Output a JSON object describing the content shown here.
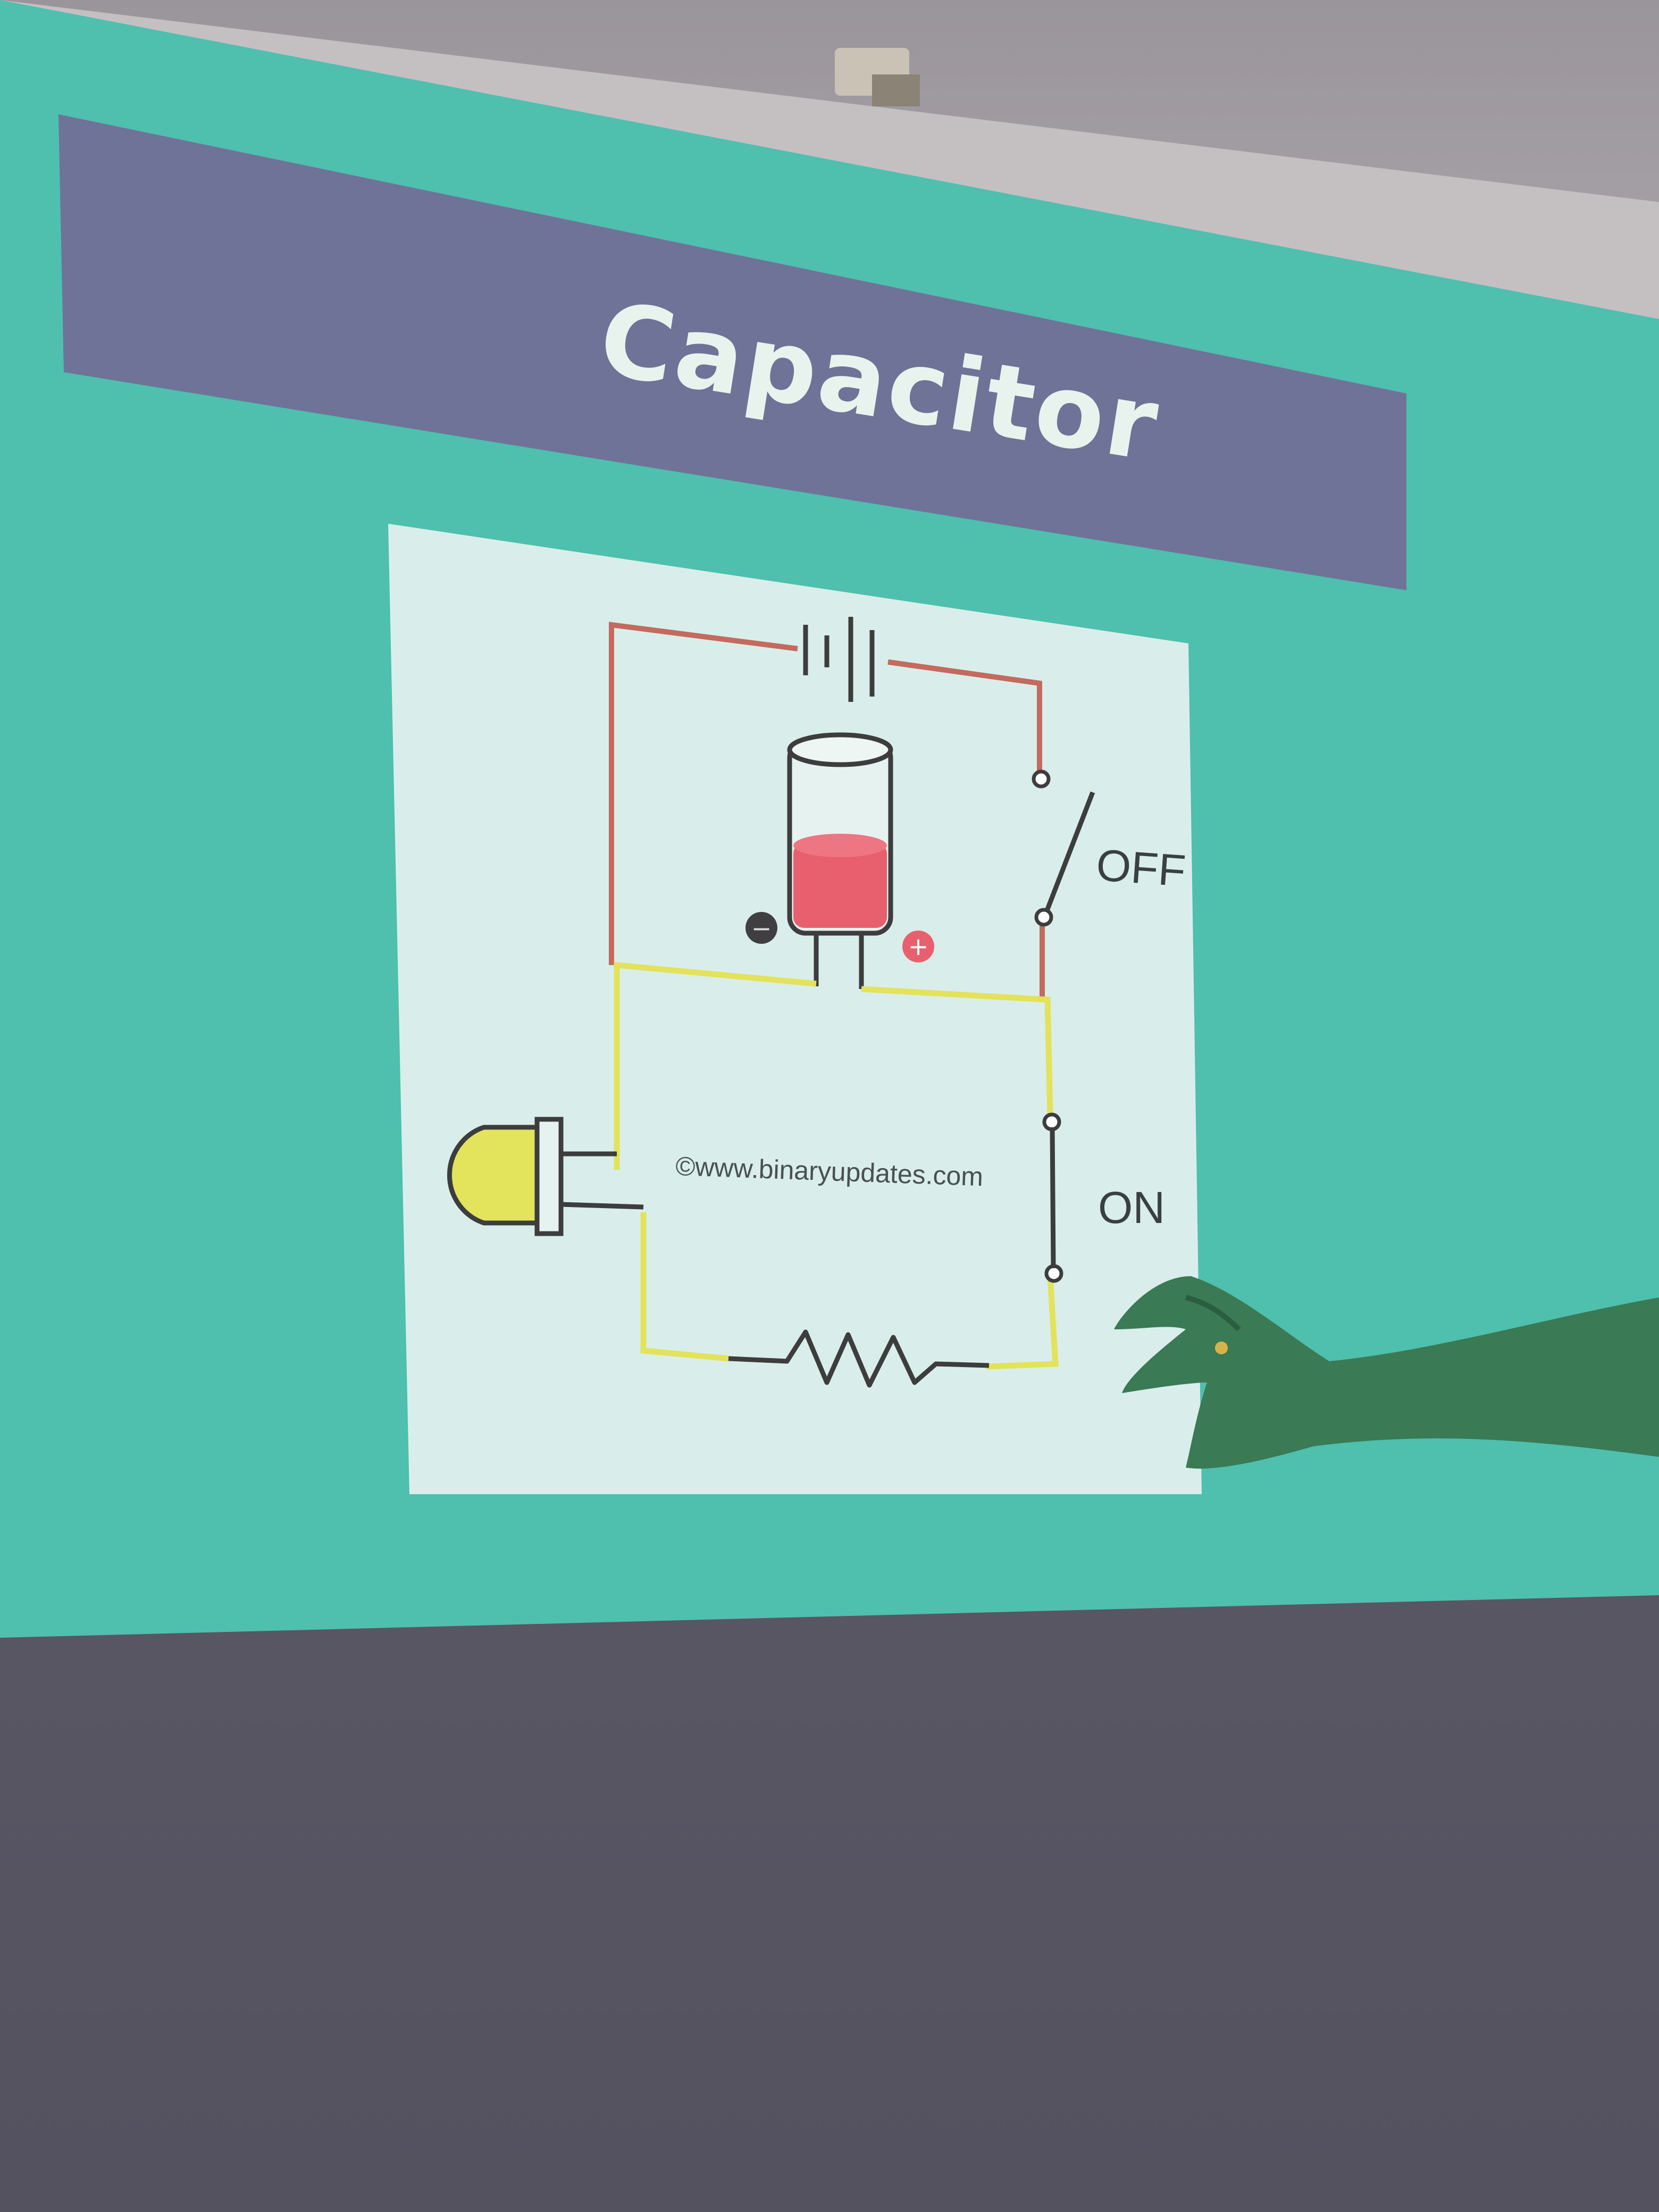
{
  "slide": {
    "title": "Capacitor",
    "bg_color": "#4fbfae",
    "title_bar_color": "#6f7397"
  },
  "diagram": {
    "switch_top_label": "OFF",
    "switch_bottom_label": "ON",
    "credit": "©www.binaryupdates.com",
    "minus_sign": "−",
    "plus_sign": "+",
    "wire_battery_color": "#c46a5e",
    "wire_led_color": "#e3e25a",
    "capacitor_fill_color": "#e8606e",
    "led_color": "#e4e35c"
  }
}
